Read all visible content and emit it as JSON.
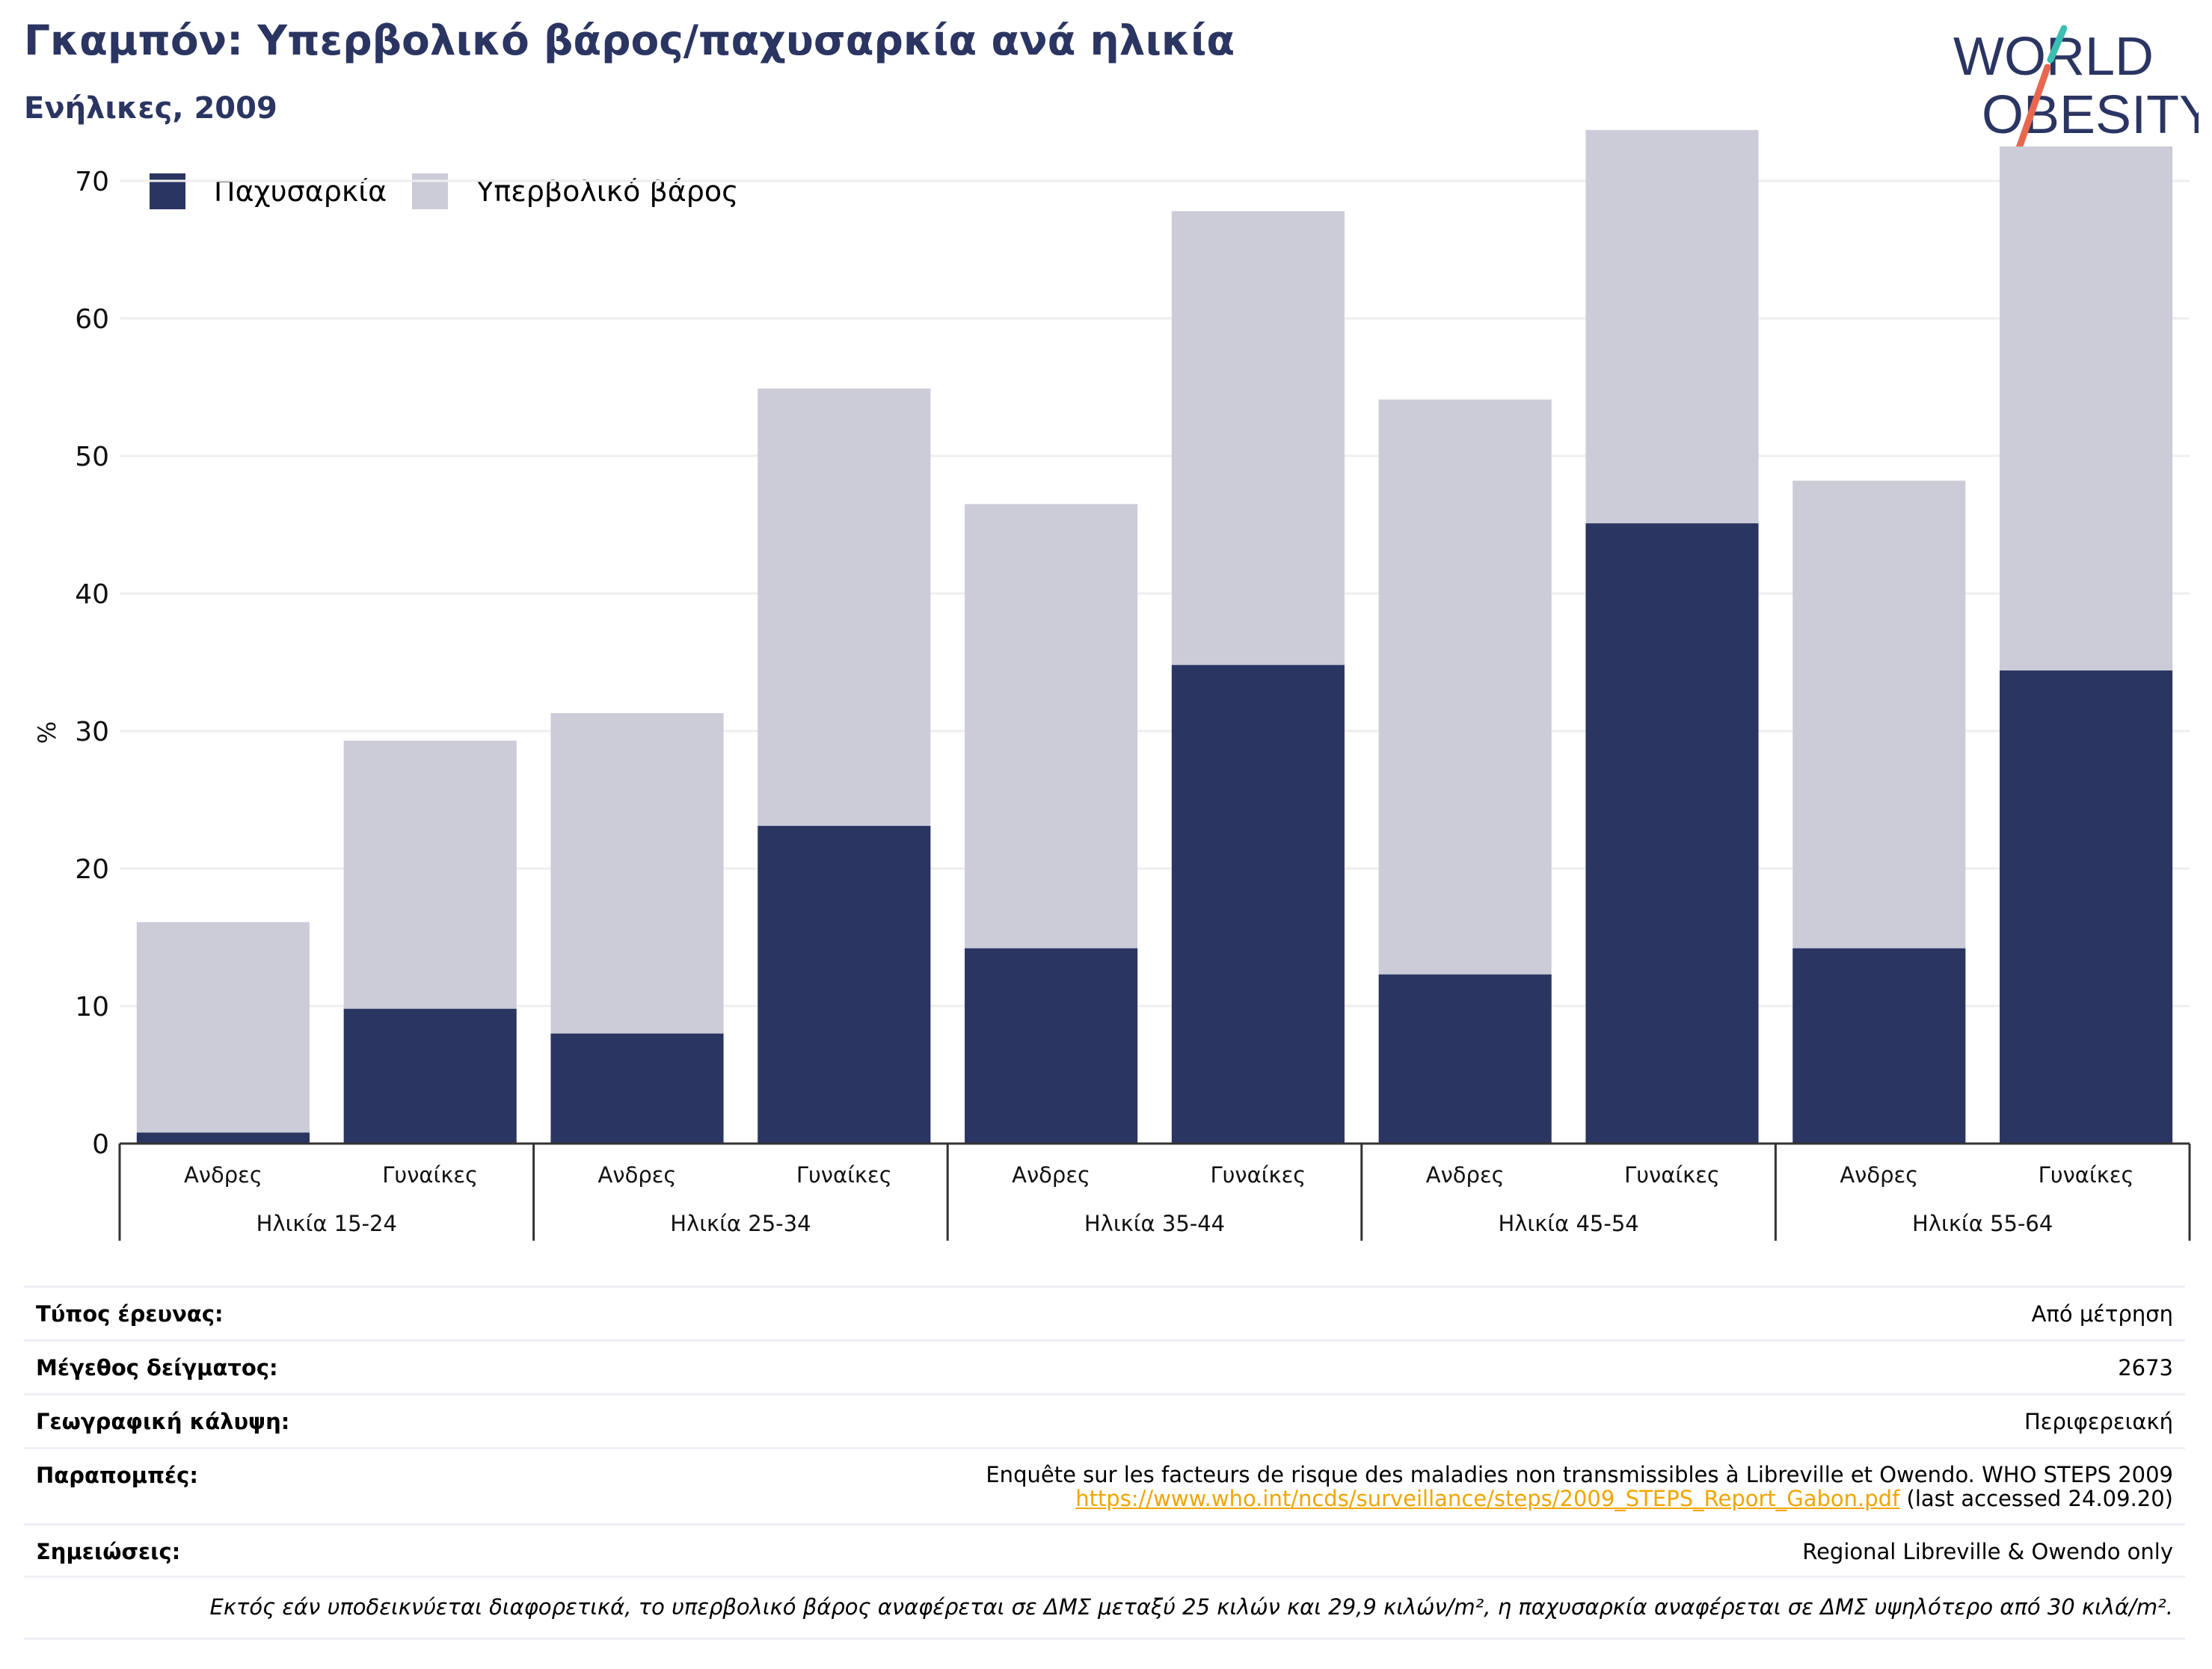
{
  "header": {
    "title": "Γκαμπόν: Υπερβολικό βάρος/παχυσαρκία ανά ηλικία",
    "subtitle": "Ενήλικες, 2009",
    "logo_line1": "WORLD",
    "logo_line2": "OBESITY"
  },
  "colors": {
    "obesity": "#2b3562",
    "overweight": "#cbccd8",
    "title": "#2b3562",
    "grid": "#eeeeee",
    "link": "#f0a500"
  },
  "legend": {
    "obesity_label": "Παχυσαρκία",
    "overweight_label": "Υπερβολικό βάρος"
  },
  "chart_data": {
    "type": "bar",
    "stacked": true,
    "ylabel": "%",
    "ylim": [
      0,
      75
    ],
    "yticks": [
      0,
      10,
      20,
      30,
      40,
      50,
      60,
      70
    ],
    "grid": true,
    "legend_position": "top-left",
    "groups": [
      "Ηλικία 15-24",
      "Ηλικία 25-34",
      "Ηλικία 35-44",
      "Ηλικία 45-54",
      "Ηλικία 55-64"
    ],
    "subcategories": [
      "Ανδρες",
      "Γυναίκες"
    ],
    "categories": [
      "Ανδρες",
      "Γυναίκες",
      "Ανδρες",
      "Γυναίκες",
      "Ανδρες",
      "Γυναίκες",
      "Ανδρες",
      "Γυναίκες",
      "Ανδρες",
      "Γυναίκες"
    ],
    "series": [
      {
        "name": "Παχυσαρκία",
        "values": [
          0.8,
          9.8,
          8.0,
          23.1,
          14.2,
          34.8,
          12.3,
          45.1,
          14.2,
          34.4
        ]
      },
      {
        "name": "Υπερβολικό βάρος",
        "values": [
          15.3,
          19.5,
          23.3,
          31.8,
          32.3,
          33.0,
          41.8,
          28.6,
          34.0,
          38.1
        ]
      }
    ]
  },
  "info": {
    "survey_type_label": "Τύπος έρευνας:",
    "survey_type_value": "Από μέτρηση",
    "sample_size_label": "Μέγεθος δείγματος:",
    "sample_size_value": "2673",
    "coverage_label": "Γεωγραφική κάλυψη:",
    "coverage_value": "Περιφερειακή",
    "references_label": "Παραπομπές:",
    "references_line1": "Enquête sur les facteurs de risque des maladies non transmissibles à Libreville et Owendo. WHO STEPS 2009",
    "references_link": "https://www.who.int/ncds/surveillance/steps/2009_STEPS_Report_Gabon.pdf",
    "references_accessed": " (last accessed 24.09.20)",
    "notes_label": "Σημειώσεις:",
    "notes_value": "Regional Libreville & Owendo only",
    "footnote": "Εκτός εάν υποδεικνύεται διαφορετικά, το υπερβολικό βάρος αναφέρεται σε ΔΜΣ μεταξύ 25 κιλών και 29,9 κιλών/m², η παχυσαρκία αναφέρεται σε ΔΜΣ υψηλότερο από 30 κιλά/m²."
  }
}
